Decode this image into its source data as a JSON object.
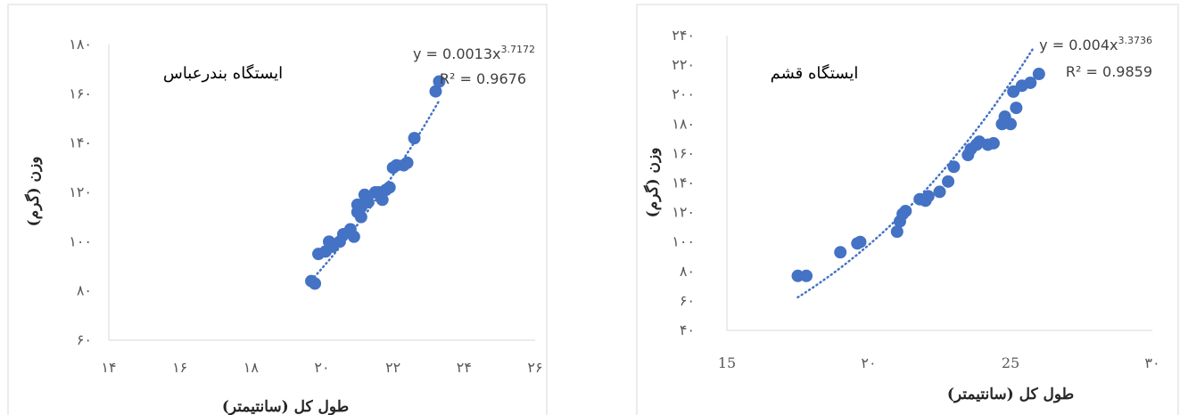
{
  "chart_data": [
    {
      "type": "scatter",
      "station_label": "ایستگاه بندرعباس",
      "xlabel": "طول کل (سانتیمتر)",
      "ylabel": "وزن (گرم)",
      "xlim": [
        14,
        26
      ],
      "ylim": [
        60,
        180
      ],
      "xticks": [
        14,
        16,
        18,
        20,
        22,
        24,
        26
      ],
      "yticks": [
        60,
        80,
        100,
        120,
        140,
        160,
        180
      ],
      "x_tick_labels": [
        "۱۴",
        "۱۶",
        "۱۸",
        "۲۰",
        "۲۲",
        "۲۴",
        "۲۶"
      ],
      "y_tick_labels": [
        "۶۰",
        "۸۰",
        "۱۰۰",
        "۱۲۰",
        "۱۴۰",
        "۱۶۰",
        "۱۸۰"
      ],
      "grid": false,
      "trendline": {
        "type": "power",
        "coef": 0.0013,
        "exponent": 3.7172,
        "equation_prefix": "y = 0.0013x",
        "equation_exp": "3.7172",
        "r2_text": "R² = 0.9676",
        "dotted": true,
        "x_range": [
          19.7,
          23.3
        ]
      },
      "points": [
        {
          "x": 19.7,
          "y": 84
        },
        {
          "x": 19.8,
          "y": 83
        },
        {
          "x": 19.9,
          "y": 95
        },
        {
          "x": 20.1,
          "y": 96
        },
        {
          "x": 20.2,
          "y": 100
        },
        {
          "x": 20.3,
          "y": 98
        },
        {
          "x": 20.5,
          "y": 100
        },
        {
          "x": 20.6,
          "y": 103
        },
        {
          "x": 20.8,
          "y": 105
        },
        {
          "x": 20.9,
          "y": 102
        },
        {
          "x": 21.0,
          "y": 115
        },
        {
          "x": 21.0,
          "y": 112
        },
        {
          "x": 21.1,
          "y": 110
        },
        {
          "x": 21.1,
          "y": 114
        },
        {
          "x": 21.2,
          "y": 119
        },
        {
          "x": 21.3,
          "y": 116
        },
        {
          "x": 21.5,
          "y": 120
        },
        {
          "x": 21.6,
          "y": 120
        },
        {
          "x": 21.7,
          "y": 117
        },
        {
          "x": 21.8,
          "y": 121
        },
        {
          "x": 21.9,
          "y": 122
        },
        {
          "x": 22.0,
          "y": 130
        },
        {
          "x": 22.1,
          "y": 131
        },
        {
          "x": 22.3,
          "y": 131
        },
        {
          "x": 22.4,
          "y": 132
        },
        {
          "x": 22.6,
          "y": 142
        },
        {
          "x": 23.2,
          "y": 161
        },
        {
          "x": 23.3,
          "y": 165
        }
      ],
      "colors": {
        "marker": "#4472C4",
        "trend": "#4472C4",
        "axis": "#D9D9D9",
        "border": "#D9D9D9"
      }
    },
    {
      "type": "scatter",
      "station_label": "ایستگاه قشم",
      "xlabel": "طول کل (سانتیمتر)",
      "ylabel": "وزن (گرم)",
      "xlim": [
        15,
        30
      ],
      "ylim": [
        40,
        240
      ],
      "xticks": [
        15,
        20,
        25,
        30
      ],
      "yticks": [
        40,
        60,
        80,
        100,
        120,
        140,
        160,
        180,
        200,
        220,
        240
      ],
      "x_tick_labels": [
        "15",
        "۲۰",
        "25",
        "۳۰"
      ],
      "y_tick_labels": [
        "۴۰",
        "۶۰",
        "۸۰",
        "۱۰۰",
        "۱۲۰",
        "۱۴۰",
        "۱۶۰",
        "۱۸۰",
        "۲۰۰",
        "۲۲۰",
        "۲۴۰"
      ],
      "grid": false,
      "trendline": {
        "type": "power",
        "coef": 0.004,
        "exponent": 3.3736,
        "equation_prefix": "y = 0.004x",
        "equation_exp": "3.3736",
        "r2_text": "R² = 0.9859",
        "dotted": true,
        "x_range": [
          17.5,
          25.8
        ]
      },
      "points": [
        {
          "x": 17.5,
          "y": 77
        },
        {
          "x": 17.8,
          "y": 77
        },
        {
          "x": 19.0,
          "y": 93
        },
        {
          "x": 19.6,
          "y": 99
        },
        {
          "x": 19.7,
          "y": 100
        },
        {
          "x": 21.0,
          "y": 107
        },
        {
          "x": 21.1,
          "y": 114
        },
        {
          "x": 21.2,
          "y": 119
        },
        {
          "x": 21.3,
          "y": 121
        },
        {
          "x": 21.8,
          "y": 129
        },
        {
          "x": 22.0,
          "y": 128
        },
        {
          "x": 22.1,
          "y": 131
        },
        {
          "x": 22.5,
          "y": 134
        },
        {
          "x": 22.8,
          "y": 141
        },
        {
          "x": 23.0,
          "y": 151
        },
        {
          "x": 23.5,
          "y": 159
        },
        {
          "x": 23.6,
          "y": 163
        },
        {
          "x": 23.8,
          "y": 166
        },
        {
          "x": 23.9,
          "y": 168
        },
        {
          "x": 24.2,
          "y": 166
        },
        {
          "x": 24.4,
          "y": 167
        },
        {
          "x": 24.7,
          "y": 180
        },
        {
          "x": 24.8,
          "y": 185
        },
        {
          "x": 25.0,
          "y": 180
        },
        {
          "x": 25.2,
          "y": 191
        },
        {
          "x": 25.1,
          "y": 202
        },
        {
          "x": 25.4,
          "y": 206
        },
        {
          "x": 25.7,
          "y": 208
        },
        {
          "x": 26.0,
          "y": 214
        }
      ],
      "colors": {
        "marker": "#4472C4",
        "trend": "#4472C4",
        "axis": "#D9D9D9",
        "border": "#D9D9D9"
      }
    }
  ]
}
